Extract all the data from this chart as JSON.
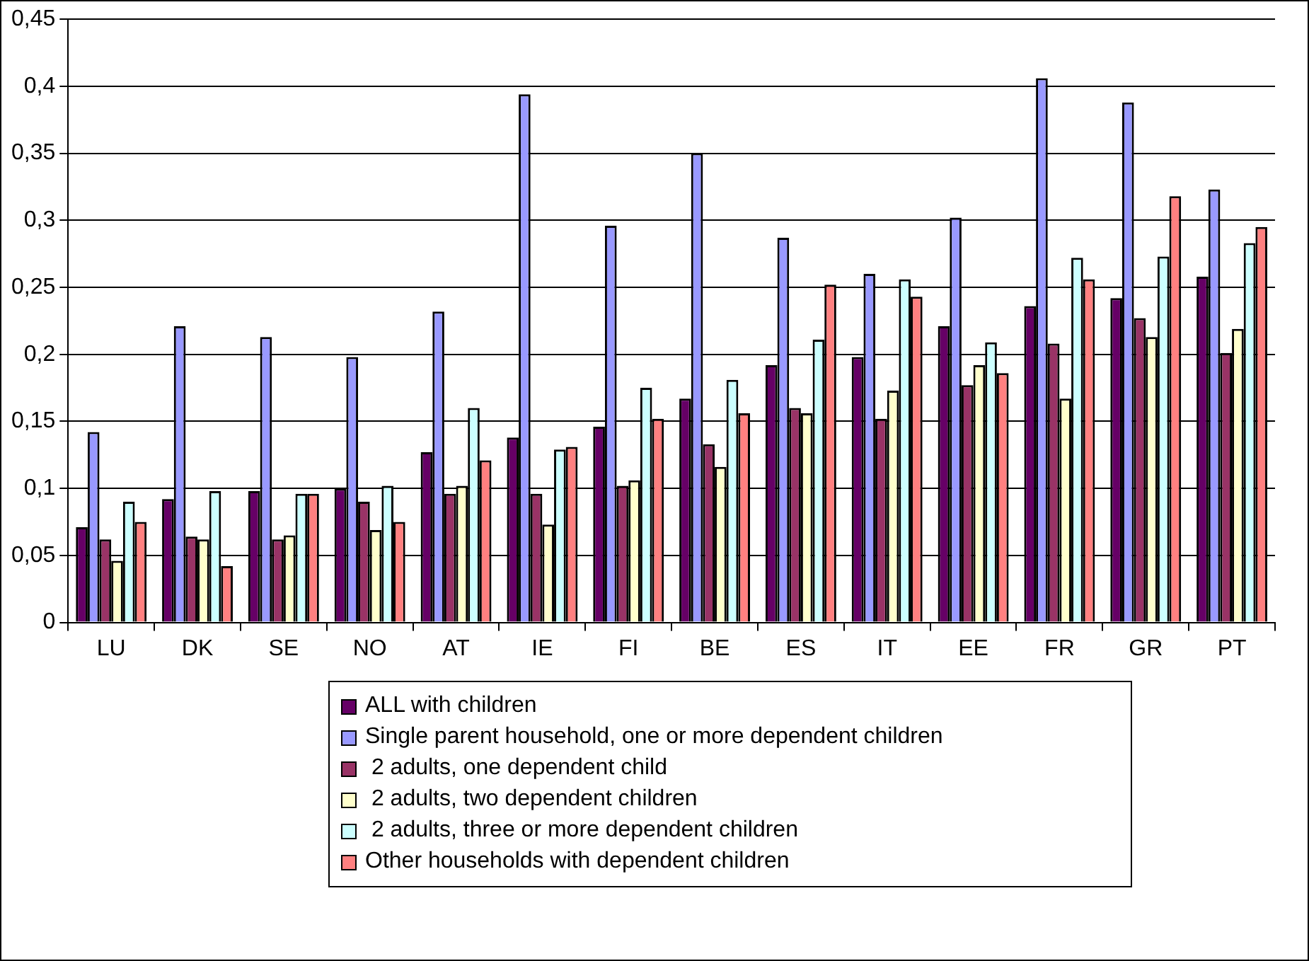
{
  "chart_data": {
    "type": "bar",
    "categories": [
      "LU",
      "DK",
      "SE",
      "NO",
      "AT",
      "IE",
      "FI",
      "BE",
      "ES",
      "IT",
      "EE",
      "FR",
      "GR",
      "PT"
    ],
    "series": [
      {
        "name": "ALL with children",
        "color": "#660066",
        "values": [
          0.071,
          0.092,
          0.098,
          0.1,
          0.127,
          0.138,
          0.146,
          0.167,
          0.192,
          0.198,
          0.221,
          0.236,
          0.242,
          0.258
        ]
      },
      {
        "name": "Single parent household, one or more dependent children",
        "color": "#9999ff",
        "values": [
          0.142,
          0.221,
          0.213,
          0.198,
          0.232,
          0.394,
          0.296,
          0.35,
          0.287,
          0.26,
          0.302,
          0.406,
          0.388,
          0.323
        ]
      },
      {
        "name": " 2 adults, one dependent child",
        "color": "#993366",
        "values": [
          0.062,
          0.064,
          0.062,
          0.09,
          0.096,
          0.096,
          0.102,
          0.133,
          0.16,
          0.152,
          0.177,
          0.208,
          0.227,
          0.201
        ]
      },
      {
        "name": " 2 adults, two dependent children",
        "color": "#ffffcc",
        "values": [
          0.046,
          0.062,
          0.065,
          0.069,
          0.102,
          0.073,
          0.106,
          0.116,
          0.156,
          0.173,
          0.192,
          0.167,
          0.213,
          0.219
        ]
      },
      {
        "name": " 2 adults, three or more dependent children",
        "color": "#ccffff",
        "values": [
          0.09,
          0.098,
          0.096,
          0.102,
          0.16,
          0.129,
          0.175,
          0.181,
          0.211,
          0.256,
          0.209,
          0.272,
          0.273,
          0.283
        ]
      },
      {
        "name": "Other households with dependent children",
        "color": "#ff8080",
        "values": [
          0.075,
          0.042,
          0.096,
          0.075,
          0.121,
          0.131,
          0.152,
          0.156,
          0.252,
          0.243,
          0.186,
          0.256,
          0.318,
          0.295
        ]
      }
    ],
    "ylim": [
      0,
      0.45
    ],
    "yticks": [
      0,
      {
        "value": 0.05,
        "label": "0,05"
      },
      {
        "value": 0.1,
        "label": "0,1"
      },
      {
        "value": 0.15,
        "label": "0,15"
      },
      {
        "value": 0.2,
        "label": "0,2"
      },
      {
        "value": 0.25,
        "label": "0,25"
      },
      {
        "value": 0.3,
        "label": "0,3"
      },
      {
        "value": 0.35,
        "label": "0,35"
      },
      {
        "value": 0.4,
        "label": "0,4"
      },
      {
        "value": 0.45,
        "label": "0,45"
      }
    ],
    "grid": "y",
    "legend": "bottom"
  }
}
